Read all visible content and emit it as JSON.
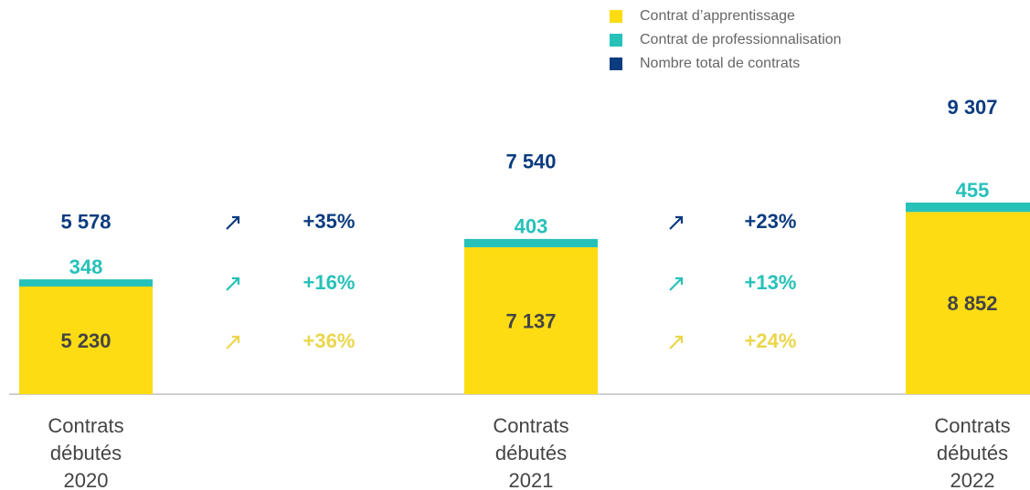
{
  "chart_data": {
    "type": "bar",
    "categories": [
      "Contrats débutés 2020",
      "Contrats débutés 2021",
      "Contrats débutés 2022"
    ],
    "series": [
      {
        "name": "Contrat d’apprentissage",
        "color": "#fddc13",
        "values": [
          5230,
          7137,
          8852
        ],
        "value_labels": [
          "5 230",
          "7 137",
          "8 852"
        ],
        "growth": {
          "values": [
            36,
            24
          ],
          "value_labels": [
            "+36%",
            "+24%"
          ]
        }
      },
      {
        "name": "Contrat de professionnalisation",
        "color": "#26c1b9",
        "values": [
          348,
          403,
          455
        ],
        "growth": {
          "values": [
            16,
            13
          ],
          "value_labels": [
            "+16%",
            "+13%"
          ]
        }
      },
      {
        "name": "Nombre total de contrats",
        "color": "#0b3c80",
        "values": [
          5578,
          7540,
          9307
        ],
        "value_labels": [
          "5 578",
          "7 540",
          "9 307"
        ],
        "growth": {
          "values": [
            35,
            23
          ],
          "value_labels": [
            "+35%",
            "+23%"
          ]
        }
      }
    ]
  }
}
